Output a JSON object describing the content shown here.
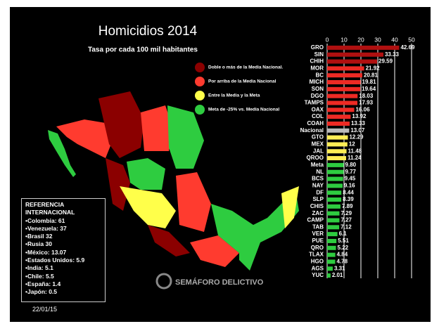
{
  "chart_data": {
    "type": "bar",
    "orientation": "horizontal",
    "title": "Homicidios 2014",
    "subtitle": "Tasa por cada 100 mil habitantes",
    "categories": [
      "GRO",
      "SIN",
      "CHIH",
      "MOR",
      "BC",
      "MICH",
      "SON",
      "DGO",
      "TAMPS",
      "OAX",
      "COL",
      "COAH",
      "Nacional",
      "GTO",
      "MEX",
      "JAL",
      "QROO",
      "Meta",
      "NL",
      "BCS",
      "NAY",
      "DF",
      "SLP",
      "CHIS",
      "ZAC",
      "CAMP",
      "TAB",
      "VER",
      "PUE",
      "QRO",
      "TLAX",
      "HGO",
      "AGS",
      "YUC"
    ],
    "values": [
      42.69,
      33.33,
      29.59,
      21.92,
      20.81,
      19.81,
      19.64,
      18.03,
      17.93,
      16.06,
      13.92,
      13.33,
      13.07,
      12.29,
      12,
      11.48,
      11.24,
      9.8,
      9.77,
      9.45,
      9.16,
      8.44,
      8.39,
      7.89,
      7.29,
      7.27,
      7.12,
      6.1,
      5.51,
      5.22,
      4.84,
      4.78,
      3.31,
      2.01
    ],
    "value_labels": [
      "42.69",
      "33.33",
      "29.59",
      "21.92",
      "20.81",
      "19.81",
      "19.64",
      "18.03",
      "17.93",
      "16.06",
      "13.92",
      "13.33",
      "13.07",
      "12.29",
      "12",
      "11.48",
      "11.24",
      "9.80",
      "9.77",
      "9.45",
      "9.16",
      "8.44",
      "8.39",
      "7.89",
      "7.29",
      "7.27",
      "7.12",
      "6.1",
      "5.51",
      "5.22",
      "4.84",
      "4.78",
      "3.31",
      "2.01"
    ],
    "colors": [
      "#b01010",
      "#b01010",
      "#b01010",
      "#ee2a24",
      "#ee2a24",
      "#ee2a24",
      "#ee2a24",
      "#ee2a24",
      "#ee2a24",
      "#ee2a24",
      "#ee2a24",
      "#ee2a24",
      "#bbbbbb",
      "#ffee55",
      "#ffee55",
      "#ffee55",
      "#ffee55",
      "#2ecc40",
      "#2ecc40",
      "#2ecc40",
      "#2ecc40",
      "#2ecc40",
      "#2ecc40",
      "#2ecc40",
      "#2ecc40",
      "#2ecc40",
      "#2ecc40",
      "#2ecc40",
      "#2ecc40",
      "#2ecc40",
      "#2ecc40",
      "#2ecc40",
      "#2ecc40",
      "#2ecc40"
    ],
    "xlim": [
      0,
      50
    ],
    "xticks": [
      0,
      10,
      20,
      30,
      40,
      50
    ],
    "grid": true,
    "legend": [
      {
        "name": "Doble o más de la Media Nacional.",
        "color": "#8b0000"
      },
      {
        "name": "Por arriba de la Media Nacional",
        "color": "#ff3b2f"
      },
      {
        "name": "Entre la Media y la Meta",
        "color": "#ffff4a"
      },
      {
        "name": "Meta de -25% vs. Media Nacional",
        "color": "#2ecc40"
      }
    ]
  },
  "reference": {
    "title": "REFERENCIA INTERNACIONAL",
    "items": [
      {
        "text": "Colombia: 61"
      },
      {
        "text": "Venezuela: 37"
      },
      {
        "text": "Brasil 32"
      },
      {
        "text": "Rusia 30"
      },
      {
        "text": "México: 13.07",
        "bold": true
      },
      {
        "text": "Estados Unidos: 5.9"
      },
      {
        "text": "India: 5.1"
      },
      {
        "text": "Chile: 5.5"
      },
      {
        "text": "España: 1.4"
      },
      {
        "text": "Japón: 0.5"
      }
    ]
  },
  "date": "22/01/15",
  "logo": "SEMÁFORO DELICTIVO"
}
